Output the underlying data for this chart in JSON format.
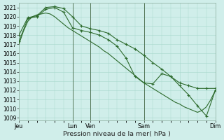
{
  "background_color": "#d0eeea",
  "grid_color": "#a8d8cc",
  "line_color": "#2d6b2d",
  "figsize": [
    3.2,
    2.0
  ],
  "dpi": 100,
  "ylim": [
    1008.7,
    1021.5
  ],
  "yticks": [
    1009,
    1010,
    1011,
    1012,
    1013,
    1014,
    1015,
    1016,
    1017,
    1018,
    1019,
    1020,
    1021
  ],
  "ytick_fontsize": 5.5,
  "xlabel": "Pression niveau de la mer( hPa )",
  "xlabel_fontsize": 6.8,
  "xtick_labels": [
    "Jeu",
    "",
    "Lun",
    "Ven",
    "",
    "Sam",
    "",
    "Dim"
  ],
  "xtick_positions": [
    0,
    3,
    6,
    8,
    10,
    14,
    18,
    22
  ],
  "xlim": [
    0,
    22
  ],
  "xtick_fontsize": 5.8,
  "vlines": [
    6,
    8,
    14,
    22
  ],
  "lw": 0.8,
  "ms": 2.8,
  "line1_x": [
    0,
    0.5,
    1,
    1.5,
    2,
    2.5,
    3,
    3.5,
    4,
    4.5,
    5,
    5.5,
    6,
    6.5,
    7,
    7.5,
    8,
    8.5,
    9,
    9.5,
    10,
    10.5,
    11,
    11.5,
    12,
    12.5,
    13,
    13.5,
    14,
    14.5,
    15,
    15.5,
    16,
    16.5,
    17,
    17.5,
    18,
    18.5,
    19,
    19.5,
    20,
    20.5,
    21,
    21.5,
    22
  ],
  "line1_y": [
    1017.0,
    1018.4,
    1019.5,
    1020.0,
    1020.2,
    1020.3,
    1020.4,
    1020.3,
    1020.0,
    1019.6,
    1019.2,
    1018.8,
    1018.5,
    1018.2,
    1017.9,
    1017.6,
    1017.3,
    1017.0,
    1016.7,
    1016.3,
    1016.0,
    1015.6,
    1015.2,
    1014.8,
    1014.4,
    1014.0,
    1013.6,
    1013.2,
    1012.8,
    1012.5,
    1012.2,
    1011.9,
    1011.6,
    1011.3,
    1011.0,
    1010.7,
    1010.5,
    1010.2,
    1010.0,
    1009.8,
    1009.6,
    1009.8,
    1010.2,
    1011.0,
    1012.0
  ],
  "line2_x": [
    0,
    1,
    2,
    3,
    4,
    5,
    6,
    7,
    8,
    9,
    10,
    11,
    12,
    13,
    14,
    15,
    16,
    17,
    18,
    19,
    20,
    21,
    22
  ],
  "line2_y": [
    1018.0,
    1019.9,
    1020.1,
    1021.0,
    1021.1,
    1020.9,
    1020.0,
    1019.0,
    1018.7,
    1018.5,
    1018.2,
    1017.5,
    1017.0,
    1016.5,
    1015.8,
    1015.0,
    1014.3,
    1013.5,
    1012.8,
    1012.5,
    1012.2,
    1012.2,
    1012.2
  ],
  "line3_x": [
    0,
    1,
    2,
    3,
    4,
    5,
    6,
    7,
    8,
    9,
    10,
    11,
    12,
    13,
    14,
    15,
    16,
    17,
    18,
    19,
    20,
    21,
    22
  ],
  "line3_y": [
    1017.3,
    1019.8,
    1020.0,
    1020.8,
    1021.0,
    1020.5,
    1018.8,
    1018.5,
    1018.3,
    1018.0,
    1017.5,
    1016.8,
    1015.5,
    1013.5,
    1012.8,
    1012.7,
    1013.8,
    1013.5,
    1012.5,
    1011.5,
    1010.3,
    1009.2,
    1012.0
  ]
}
